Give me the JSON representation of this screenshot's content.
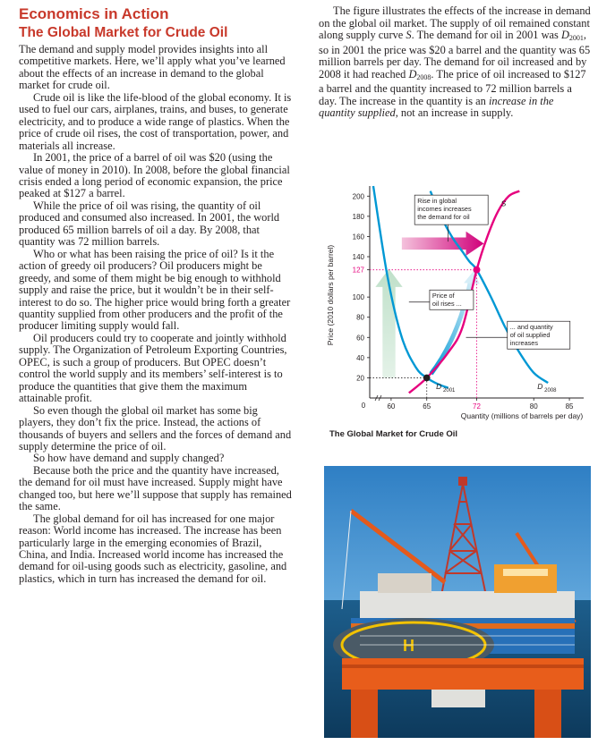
{
  "kicker": "Economics in Action",
  "headline": "The Global Market for Crude Oil",
  "left_paragraphs": [
    "The demand and supply model provides insights into all competitive markets. Here, we’ll apply what you’ve learned about the effects of an increase in demand to the global market for crude oil.",
    "Crude oil is like the life-blood of the global economy. It is used to fuel our cars, airplanes, trains, and buses, to generate electricity, and to produce a wide range of plastics. When the price of crude oil rises, the cost of transportation, power, and materials all increase.",
    "In 2001, the price of a barrel of oil was $20 (using the value of money in 2010). In 2008, before the global financial crisis ended a long period of economic expansion, the price peaked at $127 a barrel.",
    "While the price of oil was rising, the quantity of oil produced and consumed also increased. In 2001, the world produced 65 million barrels of oil a day. By 2008, that quantity was 72 million barrels.",
    "Who or what has been raising the price of oil? Is it the action of greedy oil producers? Oil producers might be greedy, and some of them might be big enough to withhold supply and raise the price, but it wouldn’t be in their self-interest to do so. The higher price would bring forth a greater quantity supplied from other producers and the profit of the producer limiting supply would fall.",
    "Oil producers could try to cooperate and jointly withhold supply. The Organization of Petroleum Exporting Countries, OPEC, is such a group of producers. But OPEC doesn’t control the world supply and its members’ self-interest is to produce the quantities that give them the maximum attainable profit.",
    "So even though the global oil market has some big players, they don’t fix the price. Instead, the actions of thousands of buyers and sellers and the forces of demand and supply determine the price of oil.",
    "So how have demand and supply changed?",
    "Because both the price and the quantity have increased, the demand for oil must have increased. Supply might have changed too, but here we’ll suppose that supply has remained the same.",
    "The global demand for oil has increased for one major reason: World income has increased. The increase has been particularly large in the emerging economies of Brazil, China, and India. Increased world income has increased the demand for oil-using goods such as electricity, gasoline, and plastics, which in turn has increased the demand for oil."
  ],
  "right_paragraph": {
    "p1": "The figure illustrates the effects of the increase in demand on the global oil market. The supply of oil remained constant along supply curve ",
    "s": "S",
    "p2": ". The demand for oil in 2001 was ",
    "d2001": "D",
    "d2001_sub": "2001",
    "p3": ", so in 2001 the price was $20 a barrel and the quantity was 65 million barrels per day. The demand for oil increased and by 2008 it had reached ",
    "d2008": "D",
    "d2008_sub": "2008",
    "p4": ". The price of oil increased to $127 a barrel and the quantity increased to 72 million barrels a day. The increase in the quantity is an ",
    "em1": "increase in the quantity supplied",
    "p5": ", not an increase in supply."
  },
  "chart_data": {
    "type": "line",
    "title": "The Global Market for Crude Oil",
    "xlabel": "Quantity (millions of barrels per day)",
    "ylabel": "Price (2010 dollars per barrel)",
    "x_ticks": [
      "0",
      "60",
      "65",
      "72",
      "80",
      "85"
    ],
    "y_ticks": [
      "20",
      "40",
      "60",
      "80",
      "100",
      "127",
      "140",
      "160",
      "180",
      "200"
    ],
    "xlim": [
      57,
      87
    ],
    "ylim": [
      0,
      210
    ],
    "series": [
      {
        "name": "S",
        "color": "#e6007e",
        "x": [
          62.5,
          65,
          68,
          70,
          72,
          73.5,
          75,
          76.5,
          78
        ],
        "y": [
          5,
          20,
          45,
          70,
          127,
          160,
          185,
          200,
          205
        ]
      },
      {
        "name": "D2001",
        "color": "#0098d4",
        "x": [
          57.5,
          59.5,
          61.5,
          63.5,
          65,
          66.5,
          68
        ],
        "y": [
          210,
          120,
          60,
          30,
          20,
          14,
          10
        ]
      },
      {
        "name": "D2008",
        "color": "#0098d4",
        "x": [
          65.5,
          67,
          68.5,
          70,
          71,
          72,
          74,
          76,
          78,
          80,
          82
        ],
        "y": [
          205,
          180,
          160,
          145,
          135,
          127,
          100,
          70,
          45,
          25,
          15
        ]
      }
    ],
    "equilibria": [
      {
        "x": 65,
        "y": 20
      },
      {
        "x": 72,
        "y": 127
      }
    ],
    "highlight_ticks": {
      "x": "72",
      "y": "127"
    },
    "annotations": [
      "Rise in global incomes increases the demand for oil",
      "Price of oil rises ...",
      "... and quantity of oil supplied increases"
    ],
    "curve_labels": {
      "S": "S",
      "D2001": "D",
      "D2001_sub": "2001",
      "D2008": "D",
      "D2008_sub": "2008"
    },
    "colors": {
      "supply": "#e6007e",
      "demand": "#0098d4",
      "arrow_up": "#cfe6d5",
      "highlight": "#e6007e"
    }
  },
  "photo_caption_hidden": ""
}
